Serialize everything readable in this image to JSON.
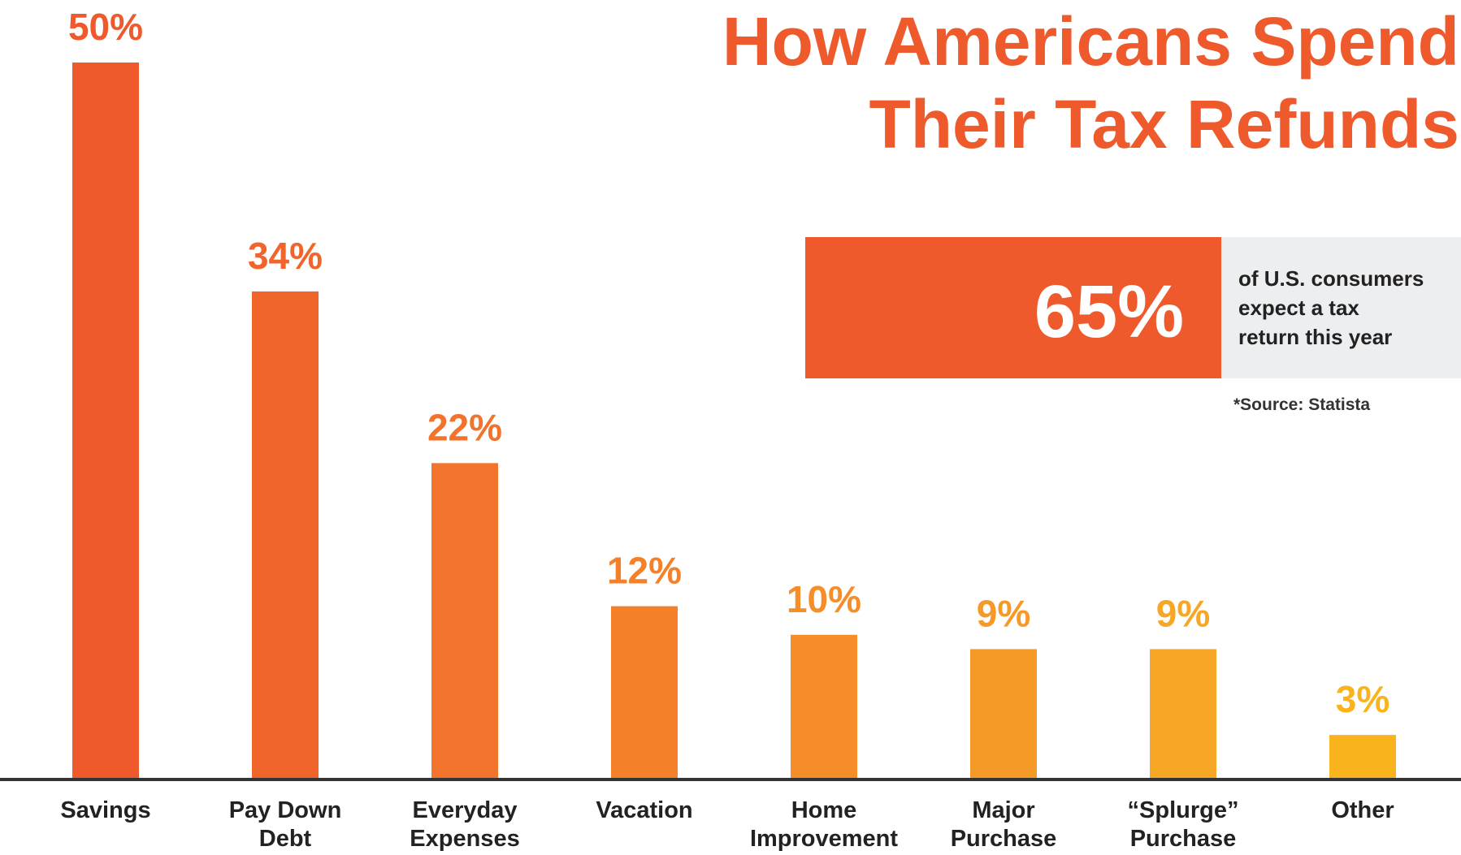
{
  "chart_data": {
    "type": "bar",
    "title_lines": [
      "How Americans Spend",
      "Their Tax Refunds"
    ],
    "categories": [
      [
        "Savings"
      ],
      [
        "Pay Down",
        "Debt"
      ],
      [
        "Everyday",
        "Expenses"
      ],
      [
        "Vacation"
      ],
      [
        "Home",
        "Improvement"
      ],
      [
        "Major",
        "Purchase"
      ],
      [
        "“Splurge”",
        "Purchase"
      ],
      [
        "Other"
      ]
    ],
    "values": [
      50,
      34,
      22,
      12,
      10,
      9,
      9,
      3
    ],
    "value_labels": [
      "50%",
      "34%",
      "22%",
      "12%",
      "10%",
      "9%",
      "9%",
      "3%"
    ],
    "bar_colors": [
      "#ef5a2c",
      "#f0652c",
      "#f2732b",
      "#f4812a",
      "#f58d29",
      "#f69a27",
      "#f7a625",
      "#f9b41d"
    ],
    "ylim": [
      0,
      50
    ],
    "grid": false,
    "legend": "none"
  },
  "callout": {
    "value": "65%",
    "description_lines": [
      "of U.S. consumers",
      "expect a tax",
      "return this year"
    ],
    "accent_color": "#ef5a2c",
    "panel_color": "#eceeef"
  },
  "source_note": "*Source: Statista",
  "colors": {
    "title": "#ef5a2c",
    "axis": "#333333"
  }
}
